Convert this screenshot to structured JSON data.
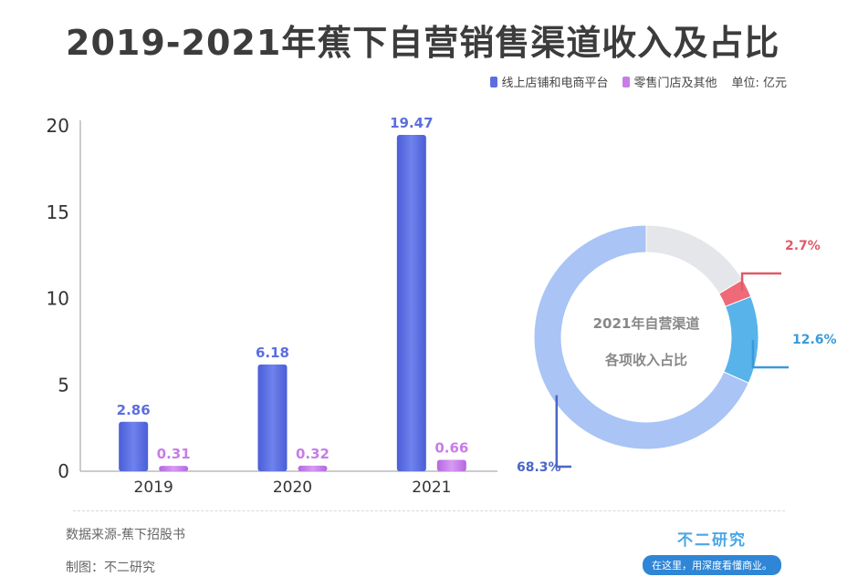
{
  "title": "2019-2021年蕉下自营销售渠道收入及占比",
  "legend": {
    "items": [
      {
        "label": "线上店铺和电商平台",
        "color": "#5b6ee0"
      },
      {
        "label": "零售门店及其他",
        "color": "#c77ce8"
      }
    ],
    "unit": "单位: 亿元"
  },
  "chart_data": [
    {
      "type": "bar",
      "categories": [
        "2019",
        "2020",
        "2021"
      ],
      "series": [
        {
          "name": "线上店铺和电商平台",
          "values": [
            2.86,
            6.18,
            19.47
          ],
          "color": "#5b6ee0"
        },
        {
          "name": "零售门店及其他",
          "values": [
            0.31,
            0.32,
            0.66
          ],
          "color": "#c77ce8"
        }
      ],
      "yticks": [
        "0",
        "5",
        "10",
        "15",
        "20"
      ],
      "ylim": [
        0,
        20
      ]
    },
    {
      "type": "pie",
      "title_line1": "2021年自营渠道",
      "title_line2": "各项收入占比",
      "slices": [
        {
          "label": "68.3%",
          "value": 68.3,
          "color": "#a9c4f5",
          "label_color": "#4a66c8"
        },
        {
          "label": "12.6%",
          "value": 12.6,
          "color": "#58b3ea",
          "label_color": "#3a9ad9"
        },
        {
          "label": "2.7%",
          "value": 2.7,
          "color": "#ee6a78",
          "label_color": "#e05a68"
        },
        {
          "label": "",
          "value": 16.4,
          "color": "#e4e6ea",
          "label_color": "#999999"
        }
      ]
    }
  ],
  "footer": {
    "source": "数据来源-蕉下招股书",
    "maker": "制图：不二研究",
    "brand": "不二研究",
    "slogan": "在这里，用深度看懂商业。"
  }
}
